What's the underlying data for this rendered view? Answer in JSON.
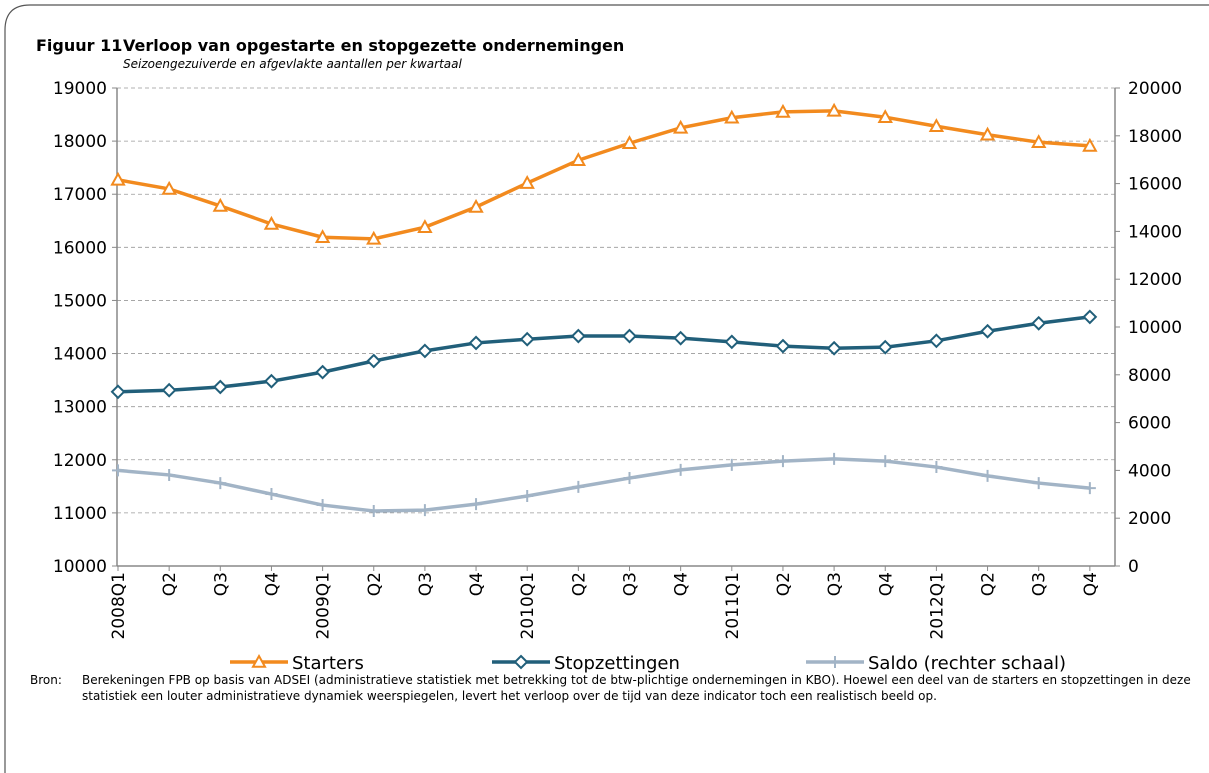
{
  "figure_label": "Figuur 11",
  "chart_data": {
    "type": "line",
    "title": "Verloop van opgestarte en stopgezette ondernemingen",
    "subtitle": "Seizoengezuiverde en afgevlakte aantallen per kwartaal",
    "categories": [
      "2008Q1",
      "Q2",
      "Q3",
      "Q4",
      "2009Q1",
      "Q2",
      "Q3",
      "Q4",
      "2010Q1",
      "Q2",
      "Q3",
      "Q4",
      "2011Q1",
      "Q2",
      "Q3",
      "Q4",
      "2012Q1",
      "Q2",
      "Q3",
      "Q4"
    ],
    "series": [
      {
        "name": "Starters",
        "color": "#f28a1e",
        "marker": "triangle",
        "values": [
          17270,
          17100,
          16780,
          16440,
          16190,
          16160,
          16380,
          16760,
          17210,
          17640,
          17960,
          18250,
          18440,
          18550,
          18570,
          18450,
          18280,
          18120,
          17980,
          17910
        ]
      },
      {
        "name": "Stopzettingen",
        "color": "#215f7a",
        "marker": "diamond",
        "values": [
          13280,
          13310,
          13370,
          13480,
          13650,
          13860,
          14050,
          14200,
          14270,
          14330,
          14330,
          14290,
          14220,
          14140,
          14100,
          14120,
          14240,
          14420,
          14570,
          14690
        ]
      },
      {
        "name": "Saldo (rechter schaal)",
        "color": "#a2b4c6",
        "marker": "plus",
        "axis": "y2",
        "values": [
          4000,
          3810,
          3470,
          3010,
          2550,
          2300,
          2340,
          2590,
          2930,
          3310,
          3680,
          4020,
          4230,
          4390,
          4480,
          4390,
          4140,
          3770,
          3470,
          3260
        ]
      }
    ],
    "ylim": [
      10000,
      19000
    ],
    "yticks": [
      10000,
      11000,
      12000,
      13000,
      14000,
      15000,
      16000,
      17000,
      18000,
      19000
    ],
    "y2lim": [
      0,
      20000
    ],
    "y2ticks": [
      0,
      2000,
      4000,
      6000,
      8000,
      10000,
      12000,
      14000,
      16000,
      18000,
      20000
    ],
    "grid": true,
    "legend": "bottom"
  },
  "source": {
    "label": "Bron:",
    "text": "Berekeningen FPB op basis van ADSEI (administratieve statistiek met betrekking tot de btw-plichtige ondernemingen in KBO). Hoewel een deel van de starters en stopzettingen in deze statistiek een louter administratieve dynamiek weerspiegelen, levert het verloop over de tijd van deze indicator toch een realistisch beeld op."
  }
}
